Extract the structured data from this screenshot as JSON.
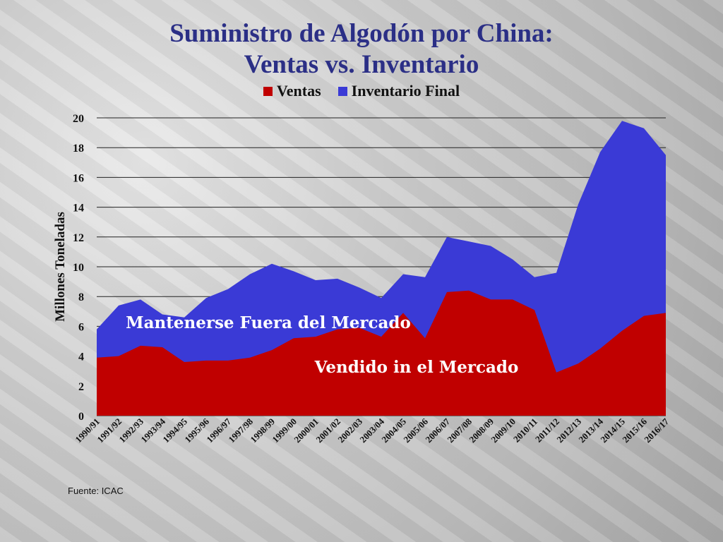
{
  "title_line1": "Suministro de Algodón por China:",
  "title_line2": "Ventas vs. Inventario",
  "source": "Fuente: ICAC",
  "chart_data": {
    "type": "area",
    "ylabel": "Millones Toneladas",
    "ylim": [
      0,
      20
    ],
    "yticks": [
      0,
      2,
      4,
      6,
      8,
      10,
      12,
      14,
      16,
      18,
      20
    ],
    "grid": true,
    "legend_position": "top-center",
    "categories": [
      "1990/91",
      "1991/92",
      "1992/93",
      "1993/94",
      "1994/95",
      "1995/96",
      "1996/97",
      "1997/98",
      "1998/99",
      "1999/00",
      "2000/01",
      "2001/02",
      "2002/03",
      "2003/04",
      "2004/05",
      "2005/06",
      "2006/07",
      "2007/08",
      "2008/09",
      "2009/10",
      "2010/11",
      "2011/12",
      "2012/13",
      "2013/14",
      "2014/15",
      "2015/16",
      "2016/17"
    ],
    "series": [
      {
        "name": "Ventas",
        "color": "#c00000",
        "values": [
          3.9,
          4.0,
          4.7,
          4.6,
          3.6,
          3.7,
          3.7,
          3.9,
          4.4,
          5.2,
          5.3,
          5.8,
          5.9,
          5.3,
          6.9,
          5.2,
          8.3,
          8.4,
          7.8,
          7.8,
          7.1,
          2.9,
          3.5,
          4.5,
          5.7,
          6.7,
          6.9
        ]
      },
      {
        "name": "Inventario Final",
        "color": "#3a3ad6",
        "stacked_total": true,
        "values": [
          5.8,
          7.4,
          7.8,
          6.8,
          6.6,
          7.9,
          8.5,
          9.5,
          10.2,
          9.7,
          9.1,
          9.2,
          8.6,
          7.9,
          9.5,
          9.3,
          12.0,
          11.7,
          11.4,
          10.5,
          9.3,
          9.6,
          14.2,
          17.7,
          19.8,
          19.3,
          17.5
        ]
      }
    ],
    "annotations": [
      "Mantenerse Fuera del Mercado",
      "Vendido in el Mercado"
    ]
  }
}
